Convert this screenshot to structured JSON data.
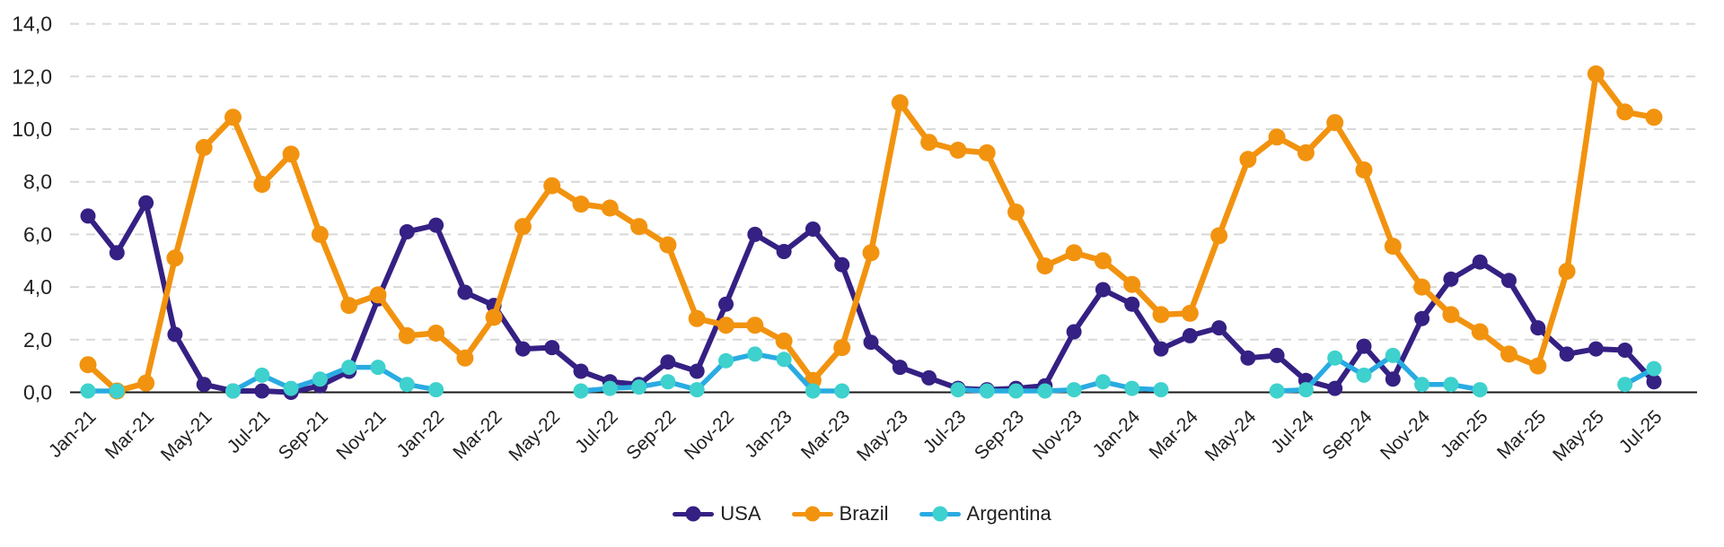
{
  "page": {
    "background": "#ffffff"
  },
  "chart_data": {
    "type": "line",
    "title": "",
    "x_axis": {
      "interval": "monthly",
      "start": "Jan-21",
      "end": "Jul-25",
      "tick_labels": [
        "Jan-21",
        "Mar-21",
        "May-21",
        "Jul-21",
        "Sep-21",
        "Nov-21",
        "Jan-22",
        "Mar-22",
        "May-22",
        "Jul-22",
        "Sep-22",
        "Nov-22",
        "Jan-23",
        "Mar-23",
        "May-23",
        "Jul-23",
        "Sep-23",
        "Nov-23",
        "Jan-24",
        "Mar-24",
        "May-24",
        "Jul-24",
        "Sep-24",
        "Nov-24",
        "Jan-25",
        "Mar-25",
        "May-25",
        "Jul-25"
      ]
    },
    "y_axis": {
      "range": [
        0,
        14
      ],
      "tick_values": [
        0,
        2,
        4,
        6,
        8,
        10,
        12,
        14
      ],
      "tick_labels": [
        "0,0",
        "2,0",
        "4,0",
        "6,0",
        "8,0",
        "10,0",
        "12,0",
        "14,0"
      ]
    },
    "grid": "horizontal-dashed",
    "legend_position": "bottom-center",
    "colors": {
      "gridline": "#d8d8d8",
      "axis_line": "#1a1a1a",
      "tick_text": "#212121"
    },
    "series": [
      {
        "name": "USA",
        "color": "#352083",
        "values": [
          6.7,
          5.3,
          7.2,
          2.2,
          0.3,
          0.05,
          0.05,
          0,
          0.25,
          0.8,
          3.55,
          6.1,
          6.35,
          3.8,
          3.3,
          1.65,
          1.7,
          0.8,
          0.4,
          0.3,
          1.15,
          0.8,
          3.35,
          6.0,
          5.35,
          6.2,
          4.85,
          1.9,
          0.95,
          0.55,
          0.15,
          0.1,
          0.15,
          0.25,
          2.3,
          3.9,
          3.35,
          1.65,
          2.15,
          2.45,
          1.3,
          1.4,
          0.45,
          0.15,
          1.75,
          0.5,
          2.8,
          4.3,
          4.95,
          4.25,
          2.45,
          1.45,
          1.65,
          1.6,
          0.4
        ]
      },
      {
        "name": "Brazil",
        "color": "#F2930F",
        "values": [
          1.05,
          0.05,
          0.35,
          5.1,
          9.3,
          10.45,
          7.9,
          9.05,
          6.0,
          3.3,
          3.7,
          2.15,
          2.25,
          1.3,
          2.85,
          6.3,
          7.85,
          7.15,
          7.0,
          6.3,
          5.6,
          2.8,
          2.55,
          2.55,
          1.95,
          0.45,
          1.7,
          5.3,
          11.0,
          9.5,
          9.2,
          9.1,
          6.85,
          4.8,
          5.3,
          5.0,
          4.1,
          2.95,
          3.0,
          5.95,
          8.85,
          9.7,
          9.1,
          10.25,
          8.45,
          5.55,
          4.0,
          2.95,
          2.3,
          1.45,
          1.0,
          4.6,
          12.1,
          10.65,
          10.45
        ]
      },
      {
        "name": "Argentina",
        "color": "#29ABE2",
        "line_color": "#29ABE2",
        "marker_color": "#3ED1CD",
        "values": [
          0.05,
          0.05,
          null,
          null,
          null,
          0.05,
          0.65,
          0.15,
          0.5,
          0.95,
          0.95,
          0.3,
          0.1,
          null,
          null,
          null,
          null,
          0.05,
          0.15,
          0.2,
          0.4,
          0.1,
          1.2,
          1.45,
          1.25,
          0.05,
          0.05,
          null,
          null,
          null,
          0.1,
          0.05,
          0.05,
          0.05,
          0.1,
          0.4,
          0.15,
          0.1,
          null,
          null,
          null,
          0.05,
          0.1,
          1.3,
          0.65,
          1.4,
          0.3,
          0.3,
          0.1,
          null,
          null,
          null,
          null,
          0.3,
          0.9
        ]
      }
    ]
  }
}
